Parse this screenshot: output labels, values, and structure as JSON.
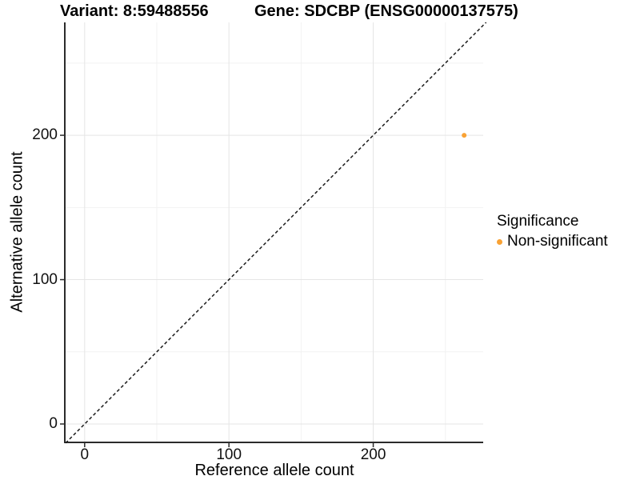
{
  "header": {
    "variant_title": "Variant: 8:59488556",
    "gene_title": "Gene: SDCBP (ENSG00000137575)"
  },
  "chart_data": {
    "type": "scatter",
    "title": "Variant: 8:59488556   Gene: SDCBP (ENSG00000137575)",
    "xlabel": "Reference allele count",
    "ylabel": "Alternative allele count",
    "xlim": [
      -13.2,
      276.2
    ],
    "ylim": [
      -12.2,
      278.2
    ],
    "x_major_ticks": [
      0,
      100,
      200
    ],
    "y_major_ticks": [
      0,
      100,
      200
    ],
    "x_minor_gridlines": [
      50,
      150,
      250
    ],
    "y_minor_gridlines": [
      50,
      150,
      250
    ],
    "grid": "major and minor gridlines on, white panel background, axis lines left and bottom only",
    "identity_line": {
      "style": "dashed",
      "color": "#1a1a1a",
      "slope": 1,
      "intercept": 0
    },
    "series": [
      {
        "name": "Non-significant",
        "color": "#F9A234",
        "points": [
          {
            "x": 263,
            "y": 200
          }
        ]
      }
    ],
    "legend": {
      "title": "Significance",
      "position": "right",
      "entries": [
        {
          "label": "Non-significant",
          "color": "#F9A234"
        }
      ]
    },
    "colors": {
      "axis_line": "#2b2b2b",
      "grid_major": "#e5e5e5",
      "grid_minor": "#f2f2f2",
      "text": "#000000",
      "background": "#ffffff"
    }
  }
}
